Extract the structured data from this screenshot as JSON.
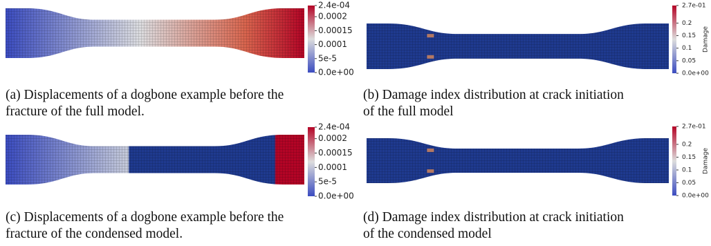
{
  "panels": [
    {
      "caption": [
        "(a) Displacements of a dogbone example before the",
        "fracture of the full model."
      ],
      "colorbar": {
        "ticks": [
          {
            "value": 0.00024,
            "label": "2.4e-04"
          },
          0.0002,
          0.00015,
          0.0001,
          {
            "value": 5e-05,
            "label": "5e-5"
          },
          {
            "value": 0,
            "label": "0.0e+00"
          }
        ]
      }
    },
    {
      "caption": [
        "(b) Damage index distribution at crack initiation",
        "of the full model"
      ],
      "colorbar": {
        "title": "Damage",
        "ticks": [
          {
            "value": 0.27,
            "label": "2.7e-01"
          },
          0.2,
          0.15,
          0.1,
          0.05,
          {
            "value": 0,
            "label": "0.0e+00"
          }
        ]
      }
    },
    {
      "caption": [
        "(c) Displacements of a dogbone example before the",
        "fracture of the condensed model."
      ],
      "colorbar": {
        "ticks": [
          {
            "value": 0.00024,
            "label": "2.4e-04"
          },
          0.0002,
          0.00015,
          0.0001,
          {
            "value": 5e-05,
            "label": "5e-5"
          },
          {
            "value": 0,
            "label": "0.0e+00"
          }
        ]
      }
    },
    {
      "caption": [
        "(d) Damage index distribution at crack initiation",
        "of the condensed model"
      ],
      "colorbar": {
        "title": "Damage",
        "ticks": [
          {
            "value": 0.27,
            "label": "2.7e-01"
          },
          0.2,
          0.15,
          0.1,
          0.05,
          {
            "value": 0,
            "label": "0.0e+00"
          }
        ]
      }
    }
  ]
}
